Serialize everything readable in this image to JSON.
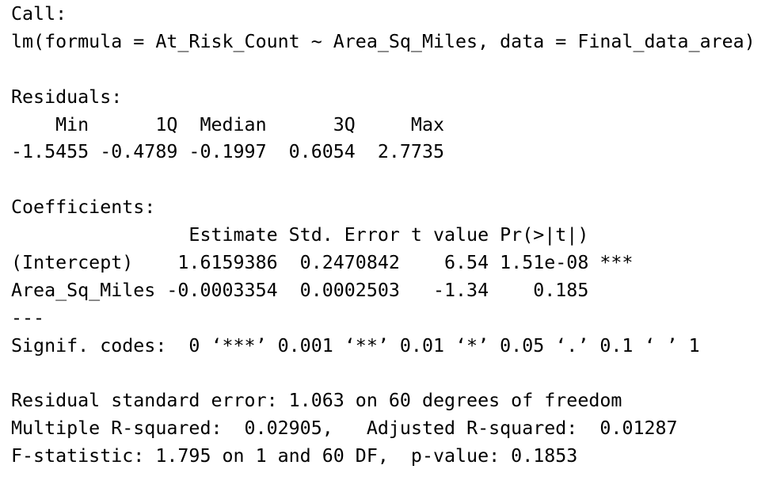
{
  "call": {
    "label": "Call:",
    "formula": "lm(formula = At_Risk_Count ~ Area_Sq_Miles, data = Final_data_area)"
  },
  "residuals": {
    "label": "Residuals:",
    "header": "    Min      1Q  Median      3Q     Max",
    "values": "-1.5455 -0.4789 -0.1997  0.6054  2.7735"
  },
  "coefficients": {
    "label": "Coefficients:",
    "header": "                Estimate Std. Error t value Pr(>|t|)",
    "rows": [
      "(Intercept)    1.6159386  0.2470842    6.54 1.51e-08 ***",
      "Area_Sq_Miles -0.0003354  0.0002503   -1.34    0.185"
    ],
    "separator": "---",
    "signif": "Signif. codes:  0 ‘***’ 0.001 ‘**’ 0.01 ‘*’ 0.05 ‘.’ 0.1 ‘ ’ 1"
  },
  "summary": [
    "Residual standard error: 1.063 on 60 degrees of freedom",
    "Multiple R-squared:  0.02905,\tAdjusted R-squared:  0.01287",
    "F-statistic: 1.795 on 1 and 60 DF,  p-value: 0.1853"
  ]
}
